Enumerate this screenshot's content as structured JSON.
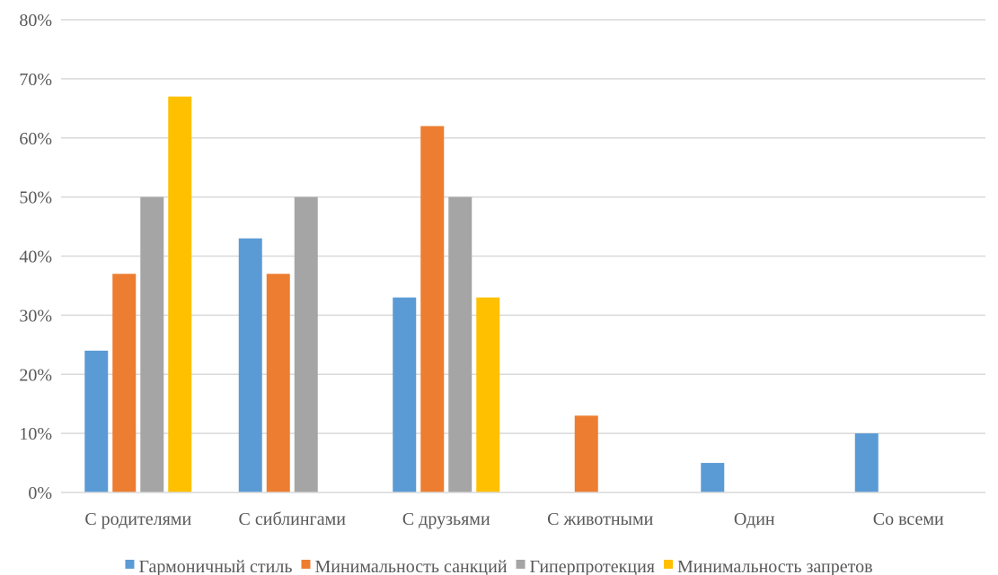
{
  "chart_data": {
    "type": "bar",
    "categories": [
      "С родителями",
      "С сиблингами",
      "С друзьями",
      "С животными",
      "Один",
      "Со всеми"
    ],
    "series": [
      {
        "name": "Гармоничный стиль",
        "color": "#5B9BD5",
        "values": [
          24,
          43,
          33,
          0,
          5,
          10
        ]
      },
      {
        "name": "Минимальность санкций",
        "color": "#ED7D31",
        "values": [
          37,
          37,
          62,
          13,
          0,
          0
        ]
      },
      {
        "name": "Гиперпротекция",
        "color": "#A5A5A5",
        "values": [
          50,
          50,
          50,
          0,
          0,
          0
        ]
      },
      {
        "name": "Минимальность запретов",
        "color": "#FFC000",
        "values": [
          67,
          0,
          33,
          0,
          0,
          0
        ]
      }
    ],
    "y_ticks": [
      "0%",
      "10%",
      "20%",
      "30%",
      "40%",
      "50%",
      "60%",
      "70%",
      "80%"
    ],
    "ylim": [
      0,
      80
    ],
    "y_unit": "%",
    "grid": true,
    "legend_position": "bottom"
  }
}
